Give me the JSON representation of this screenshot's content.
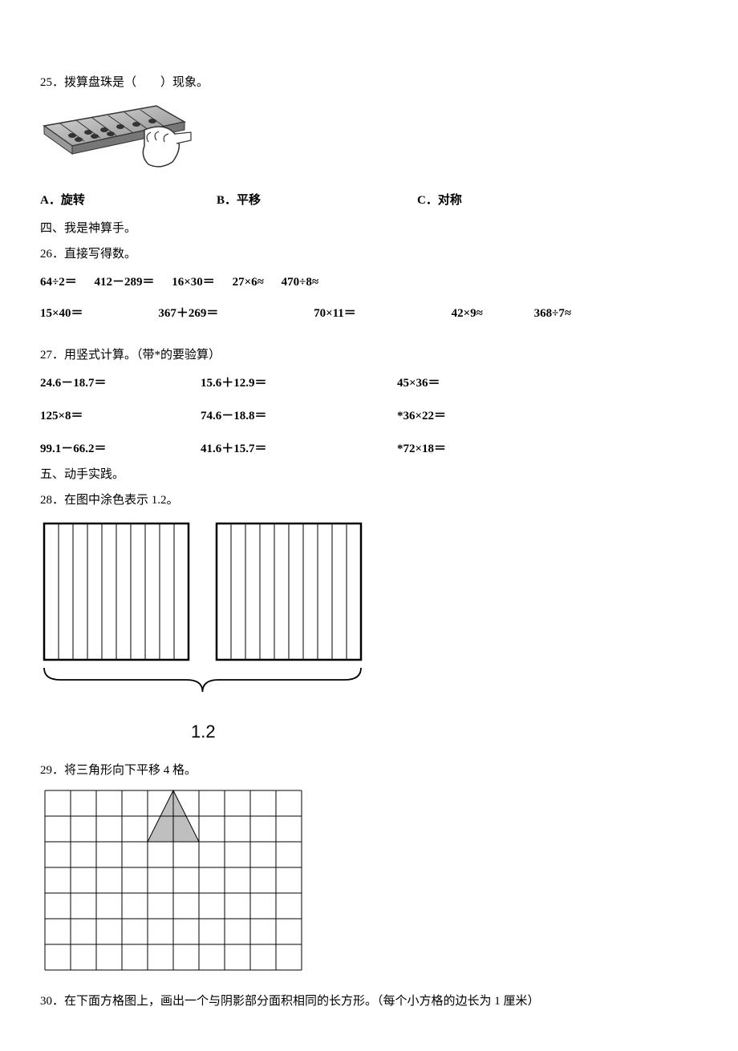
{
  "q25": {
    "text": "25．拨算盘珠是（　　）现象。",
    "choices": {
      "a": "A．旋转",
      "b": "B．平移",
      "c": "C．对称"
    }
  },
  "section4": "四、我是神算手。",
  "q26": {
    "text": "26．直接写得数。",
    "row1": {
      "c1": "64÷2＝",
      "c2": "412－289＝",
      "c3": "16×30＝",
      "c4": "27×6≈",
      "c5": "470÷8≈"
    },
    "row2": {
      "c1": "15×40＝",
      "c2": "367＋269＝",
      "c3": "70×11＝",
      "c4": "42×9≈",
      "c5": "368÷7≈"
    }
  },
  "q27": {
    "text": "27．用竖式计算。（带*的要验算）",
    "row1": {
      "c1": "24.6－18.7＝",
      "c2": "15.6＋12.9＝",
      "c3": "45×36＝"
    },
    "row2": {
      "c1": "125×8＝",
      "c2": "74.6－18.8＝",
      "c3": "*36×22＝"
    },
    "row3": {
      "c1": "99.1－66.2＝",
      "c2": "41.6＋15.7＝",
      "c3": "*72×18＝"
    }
  },
  "section5": "五、动手实践。",
  "q28": {
    "text": "28．在图中涂色表示 1.2。",
    "label": "1.2",
    "figure": {
      "square_count": 2,
      "square_width": 180,
      "square_height": 170,
      "strips_per_square": 10,
      "gap_between_squares": 35,
      "outer_stroke": "#000",
      "inner_stroke": "#555",
      "curly_brace_span": 2
    }
  },
  "q29": {
    "text": "29．将三角形向下平移 4 格。",
    "grid": {
      "cols": 10,
      "rows": 7,
      "cell": 32,
      "stroke": "#000",
      "triangle": {
        "fill": "#bfbfbf",
        "stroke": "#000",
        "points": [
          [
            4,
            2
          ],
          [
            5,
            0
          ],
          [
            6,
            2
          ]
        ]
      }
    }
  },
  "q30": {
    "text": "30．在下面方格图上，画出一个与阴影部分面积相同的长方形。（每个小方格的边长为 1 厘米）"
  }
}
